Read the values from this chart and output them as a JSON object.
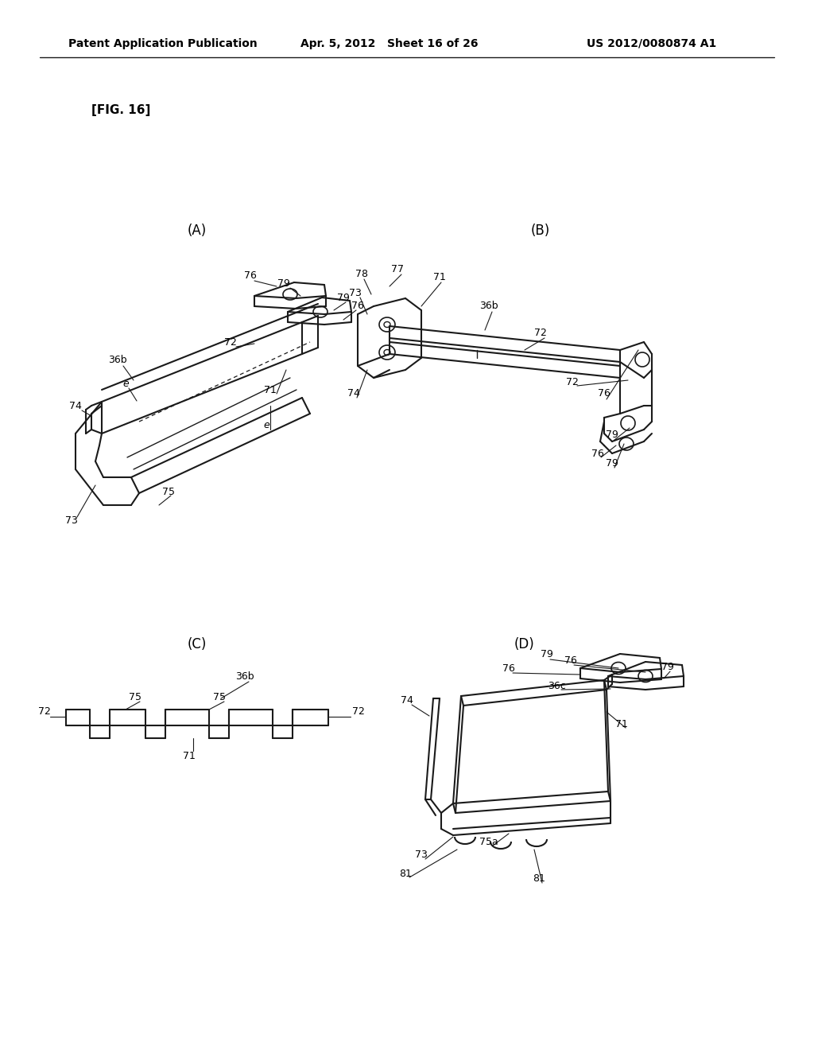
{
  "background_color": "#ffffff",
  "header_left": "Patent Application Publication",
  "header_mid": "Apr. 5, 2012   Sheet 16 of 26",
  "header_right": "US 2012/0080874 A1",
  "fig_label": "[FIG. 16]",
  "panel_labels": [
    "(A)",
    "(B)",
    "(C)",
    "(D)"
  ],
  "line_color": "#1a1a1a",
  "text_color": "#000000"
}
